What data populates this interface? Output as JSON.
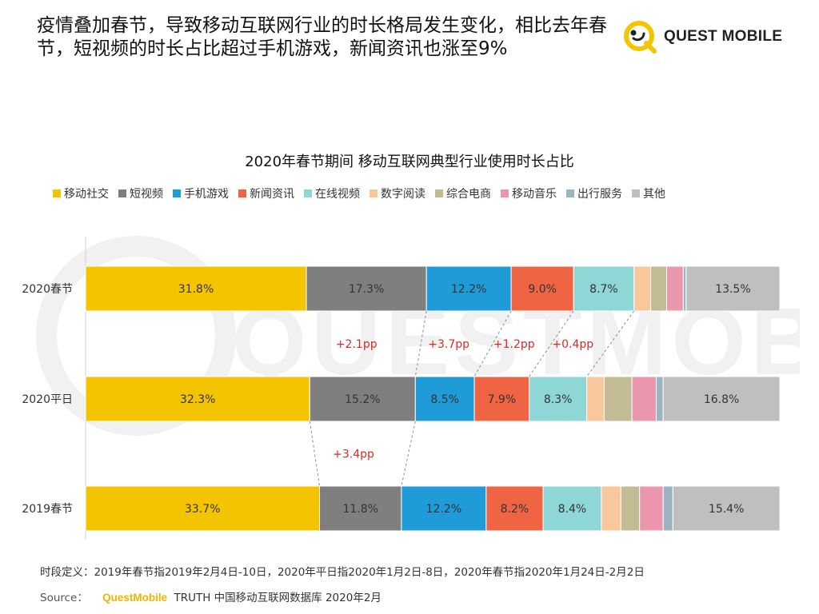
{
  "headline": "疫情叠加春节，导致移动互联网行业的时长格局发生变化，相比去年春节，短视频的时长占比超过手机游戏，新闻资讯也涨至9%",
  "logo": {
    "text": "QUEST MOBILE",
    "watermark_text": "QUESTMOBILE"
  },
  "colors": {
    "移动社交": "#f5c400",
    "短视频": "#7f7f7f",
    "手机游戏": "#1f9bd7",
    "新闻资讯": "#ef6443",
    "在线视频": "#8fd7d6",
    "数字阅读": "#f8c79b",
    "综合电商": "#c3bb94",
    "移动音乐": "#ea97ad",
    "出行服务": "#9db4c0",
    "其他": "#bfbfbf",
    "annotation": "#d62a2a"
  },
  "chart_data": {
    "type": "bar",
    "orientation": "horizontal-stacked-100",
    "title": "2020年春节期间 移动互联网典型行业使用时长占比",
    "categories": [
      "2020春节",
      "2020平日",
      "2019春节"
    ],
    "series": [
      {
        "name": "移动社交",
        "values": [
          31.8,
          32.3,
          33.7
        ],
        "labels": [
          "31.8%",
          "32.3%",
          "33.7%"
        ]
      },
      {
        "name": "短视频",
        "values": [
          17.3,
          15.2,
          11.8
        ],
        "labels": [
          "17.3%",
          "15.2%",
          "11.8%"
        ]
      },
      {
        "name": "手机游戏",
        "values": [
          12.2,
          8.5,
          12.2
        ],
        "labels": [
          "12.2%",
          "8.5%",
          "12.2%"
        ]
      },
      {
        "name": "新闻资讯",
        "values": [
          9.0,
          7.9,
          8.2
        ],
        "labels": [
          "9.0%",
          "7.9%",
          "8.2%"
        ]
      },
      {
        "name": "在线视频",
        "values": [
          8.7,
          8.3,
          8.4
        ],
        "labels": [
          "8.7%",
          "8.3%",
          "8.4%"
        ]
      },
      {
        "name": "数字阅读",
        "values": [
          2.4,
          2.5,
          2.8
        ],
        "labels": [
          "",
          "",
          ""
        ]
      },
      {
        "name": "综合电商",
        "values": [
          2.3,
          4.0,
          2.7
        ],
        "labels": [
          "",
          "",
          ""
        ]
      },
      {
        "name": "移动音乐",
        "values": [
          2.4,
          3.5,
          3.4
        ],
        "labels": [
          "",
          "",
          ""
        ]
      },
      {
        "name": "出行服务",
        "values": [
          0.4,
          1.0,
          1.4
        ],
        "labels": [
          "",
          "",
          ""
        ]
      },
      {
        "name": "其他",
        "values": [
          13.5,
          16.8,
          15.4
        ],
        "labels": [
          "13.5%",
          "16.8%",
          "15.4%"
        ]
      }
    ],
    "annotations": [
      {
        "text": "+2.1pp",
        "between": [
          "2020春节",
          "2020平日"
        ],
        "boundary": 2
      },
      {
        "text": "+3.7pp",
        "between": [
          "2020春节",
          "2020平日"
        ],
        "boundary": 3
      },
      {
        "text": "+1.2pp",
        "between": [
          "2020春节",
          "2020平日"
        ],
        "boundary": 4
      },
      {
        "text": "+0.4pp",
        "between": [
          "2020春节",
          "2020平日"
        ],
        "boundary": 5
      },
      {
        "text": "+3.4pp",
        "between": [
          "2020平日",
          "2019春节"
        ],
        "boundary": 2
      }
    ],
    "connectors": [
      {
        "from": "2020春节",
        "to": "2020平日",
        "boundaries": [
          2,
          3,
          4,
          5
        ]
      },
      {
        "from": "2020平日",
        "to": "2019春节",
        "boundaries": [
          1,
          2
        ]
      }
    ],
    "legend_position": "top",
    "xlim": [
      0,
      100
    ]
  },
  "footnote": "时段定义：2019年春节指2019年2月4日-10日，2020年平日指2020年1月2日-8日，2020年春节指2020年1月24日-2月2日",
  "source": {
    "label": "Source：",
    "brand": "QuestMobile",
    "text": "TRUTH 中国移动互联网数据库 2020年2月"
  }
}
